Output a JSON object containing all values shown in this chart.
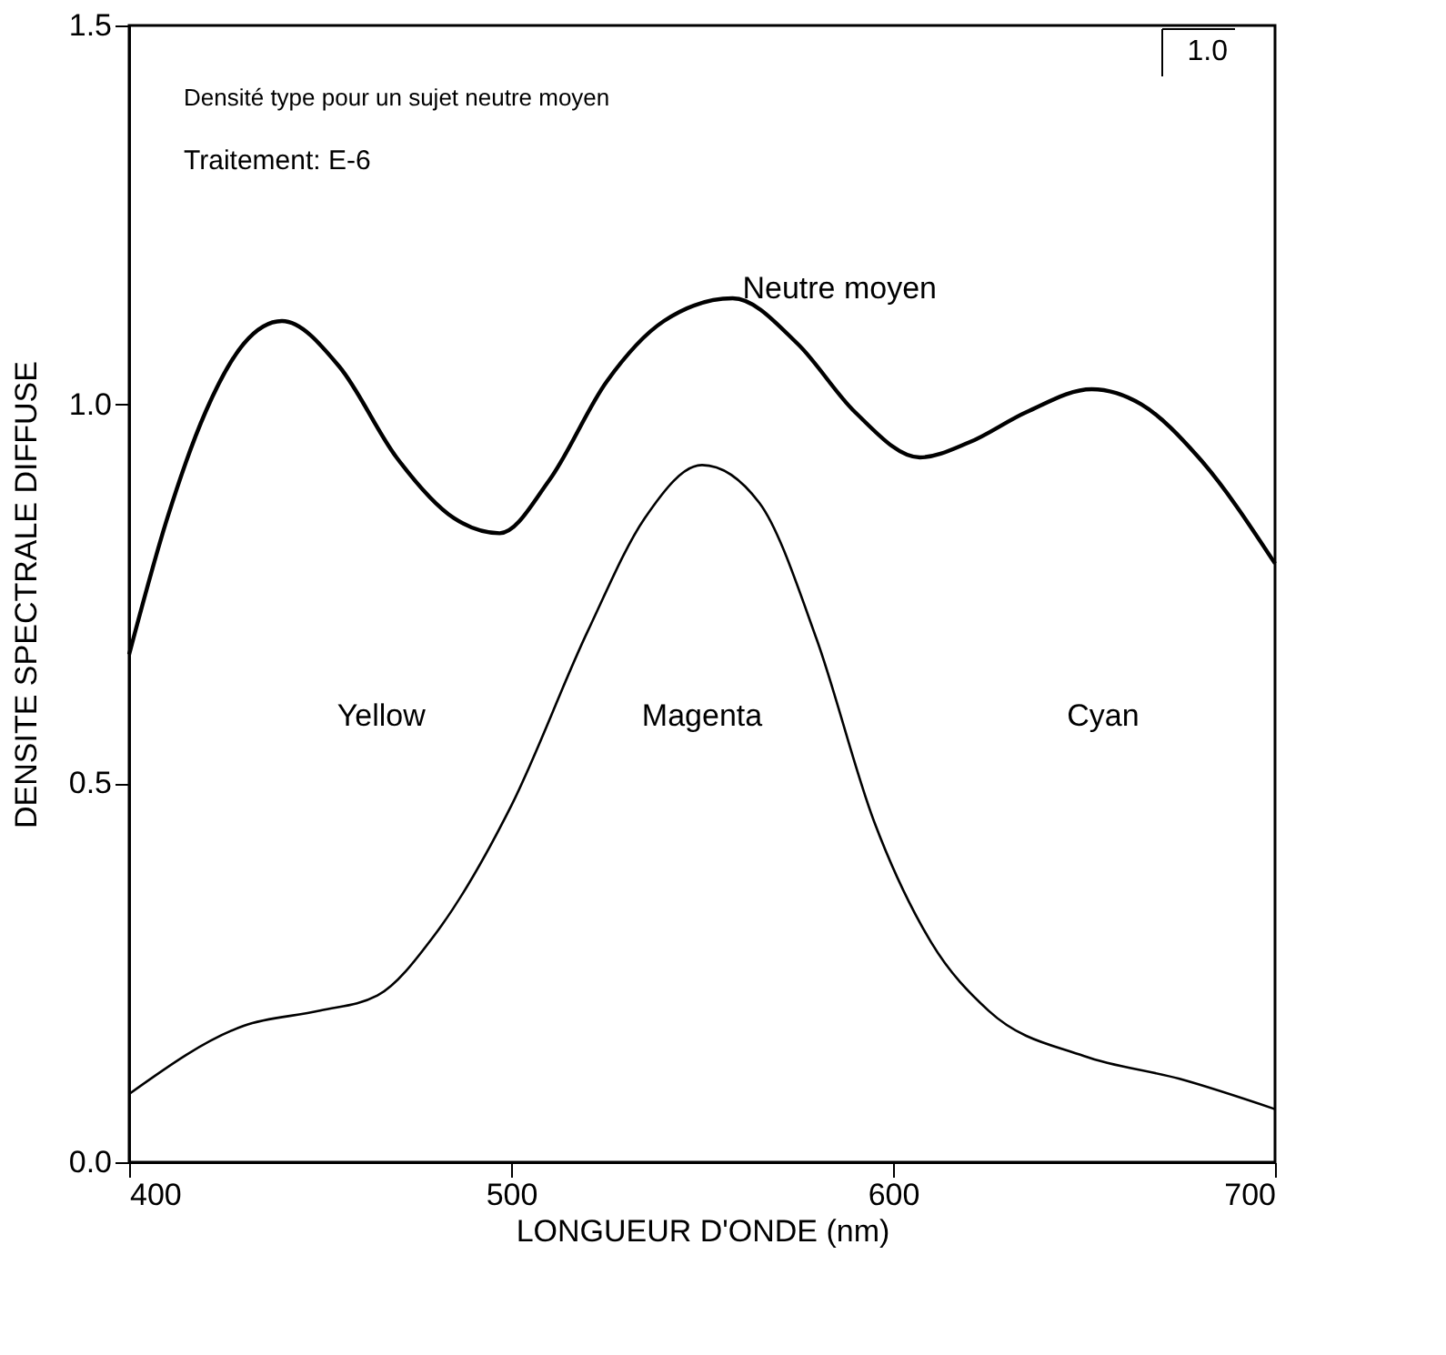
{
  "chart_data": {
    "type": "line",
    "xlabel": "LONGUEUR D'ONDE (nm)",
    "ylabel": "DENSITE SPECTRALE DIFFUSE",
    "xlim": [
      400,
      700
    ],
    "ylim": [
      0,
      1.5
    ],
    "xticks": [
      400,
      500,
      600,
      700
    ],
    "yticks": [
      {
        "value": 0,
        "label": "0.0"
      },
      0.5,
      {
        "value": 1,
        "label": "1.0"
      },
      1.5
    ],
    "grid": false,
    "marker": "none",
    "line_style": "solid",
    "series": [
      {
        "color": "#000000",
        "x": [
          400,
          410,
          420,
          430,
          440,
          455,
          470,
          485,
          497,
          510,
          525,
          540,
          558,
          575,
          590,
          607,
          620,
          635,
          652,
          665,
          680,
          700
        ],
        "values": [
          0.67,
          0.85,
          0.99,
          1.08,
          1.11,
          1.05,
          0.93,
          0.85,
          0.83,
          0.9,
          1.03,
          1.11,
          1.14,
          1.08,
          0.99,
          0.93,
          0.95,
          0.99,
          1.02,
          1.0,
          0.93,
          0.79
        ]
      },
      {
        "color": "#000000",
        "x": [
          400,
          430,
          450,
          465,
          480,
          500,
          520,
          535,
          550,
          565,
          580,
          595,
          610,
          625,
          650,
          675,
          700
        ],
        "values": [
          0.09,
          0.18,
          0.2,
          0.22,
          0.3,
          0.47,
          0.7,
          0.85,
          0.92,
          0.87,
          0.69,
          0.45,
          0.29,
          0.2,
          0.14,
          0.11,
          0.07
        ]
      }
    ],
    "annotations": [
      "Densité type pour un sujet neutre moyen",
      "Traitement: E-6",
      "1.0",
      "Neutre moyen",
      "Yellow",
      "Magenta",
      "Cyan"
    ]
  }
}
